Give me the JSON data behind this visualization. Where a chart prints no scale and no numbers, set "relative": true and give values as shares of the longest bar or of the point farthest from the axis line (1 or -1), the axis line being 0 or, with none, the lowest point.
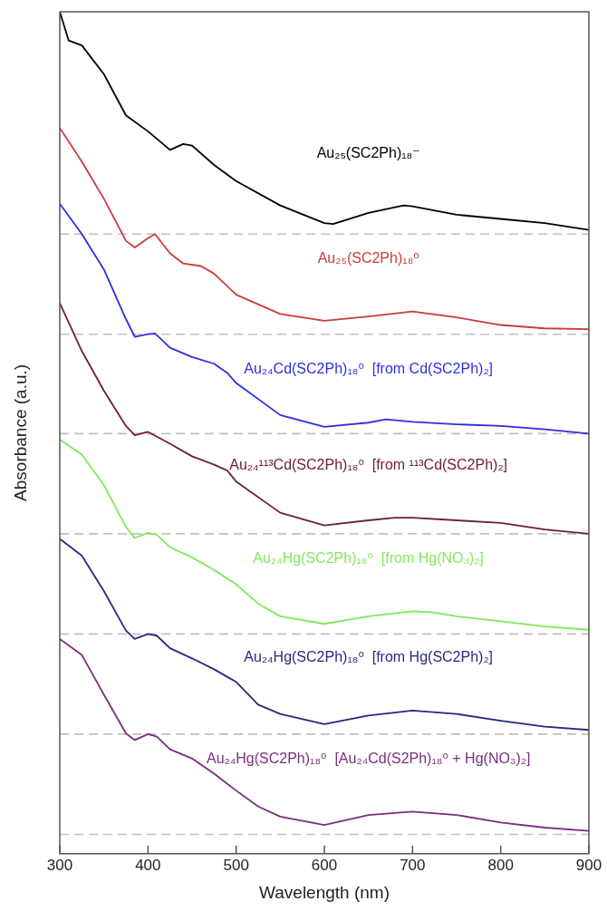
{
  "chart_data": {
    "type": "line",
    "relative": true,
    "xlabel": "Wavelength (nm)",
    "ylabel": "Absorbance (a.u.)",
    "xlim": [
      300,
      900
    ],
    "xticks": [
      300,
      400,
      500,
      600,
      700,
      800,
      900
    ],
    "grid": false,
    "legend": false,
    "marker": "none",
    "line_style": "solid",
    "series": [
      {
        "name": "Au₂₅(SC2Ph)₁₈⁻",
        "color": "#000000",
        "x": [
          300,
          310,
          325,
          350,
          375,
          400,
          425,
          440,
          450,
          475,
          500,
          550,
          600,
          610,
          650,
          690,
          700,
          750,
          800,
          850,
          900
        ],
        "values": [
          1.0,
          0.966,
          0.96,
          0.926,
          0.877,
          0.858,
          0.836,
          0.843,
          0.841,
          0.818,
          0.799,
          0.77,
          0.749,
          0.748,
          0.761,
          0.77,
          0.769,
          0.759,
          0.754,
          0.749,
          0.741
        ]
      },
      {
        "name": "Au₂₅(SC2Ph)₁₈⁰",
        "color": "#cc3a3a",
        "x": [
          300,
          325,
          350,
          375,
          385,
          400,
          408,
          425,
          440,
          460,
          475,
          500,
          550,
          600,
          650,
          700,
          750,
          800,
          850,
          900
        ],
        "values": [
          0.862,
          0.822,
          0.778,
          0.728,
          0.72,
          0.731,
          0.736,
          0.713,
          0.701,
          0.698,
          0.689,
          0.664,
          0.641,
          0.633,
          0.638,
          0.644,
          0.637,
          0.628,
          0.624,
          0.623
        ]
      },
      {
        "name": "Au₂₄Cd(SC2Ph)₁₈⁰  [from Cd(SC2Ph)₂]",
        "color": "#2f2fe0",
        "x": [
          300,
          325,
          350,
          375,
          385,
          400,
          408,
          425,
          450,
          475,
          490,
          500,
          550,
          600,
          650,
          670,
          700,
          750,
          800,
          850,
          900
        ],
        "values": [
          0.772,
          0.736,
          0.694,
          0.635,
          0.614,
          0.617,
          0.618,
          0.601,
          0.59,
          0.582,
          0.571,
          0.559,
          0.521,
          0.507,
          0.512,
          0.516,
          0.513,
          0.51,
          0.508,
          0.504,
          0.499
        ]
      },
      {
        "name": "Au₂₄¹¹³Cd(SC2Ph)₁₈⁰  [from ¹¹³Cd(SC2Ph)₂]",
        "color": "#6e2030",
        "x": [
          300,
          325,
          350,
          375,
          385,
          400,
          425,
          450,
          475,
          490,
          500,
          550,
          600,
          650,
          680,
          700,
          750,
          800,
          850,
          900
        ],
        "values": [
          0.654,
          0.597,
          0.55,
          0.508,
          0.497,
          0.501,
          0.487,
          0.472,
          0.462,
          0.455,
          0.442,
          0.405,
          0.39,
          0.396,
          0.399,
          0.399,
          0.396,
          0.393,
          0.385,
          0.38
        ]
      },
      {
        "name": "Au₂₄Hg(SC2Ph)₁₈⁰  [from Hg(NO₃)₂]",
        "color": "#80e85a",
        "x": [
          300,
          325,
          350,
          375,
          385,
          400,
          410,
          425,
          450,
          475,
          500,
          525,
          550,
          600,
          650,
          700,
          720,
          750,
          800,
          850,
          900
        ],
        "values": [
          0.492,
          0.474,
          0.438,
          0.388,
          0.375,
          0.381,
          0.379,
          0.364,
          0.352,
          0.337,
          0.32,
          0.297,
          0.282,
          0.273,
          0.282,
          0.288,
          0.287,
          0.282,
          0.276,
          0.27,
          0.266
        ]
      },
      {
        "name": "Au₂₄Hg(SC2Ph)₁₈⁰  [from Hg(SC2Ph)₂]",
        "color": "#26287f",
        "x": [
          300,
          325,
          350,
          375,
          385,
          400,
          410,
          425,
          450,
          475,
          500,
          525,
          550,
          600,
          650,
          700,
          750,
          800,
          850,
          900
        ],
        "values": [
          0.374,
          0.354,
          0.312,
          0.265,
          0.255,
          0.261,
          0.259,
          0.244,
          0.232,
          0.219,
          0.204,
          0.177,
          0.166,
          0.154,
          0.164,
          0.17,
          0.166,
          0.158,
          0.151,
          0.147
        ]
      },
      {
        "name": "Au₂₄Hg(SC2Ph)₁₈⁰  [Au₂₄Cd(S2Ph)₁₈⁰ + Hg(NO₃)₂]",
        "color": "#7a2e7e",
        "x": [
          300,
          325,
          350,
          375,
          385,
          400,
          410,
          425,
          450,
          475,
          500,
          525,
          550,
          600,
          650,
          700,
          750,
          800,
          850,
          900
        ],
        "values": [
          0.255,
          0.236,
          0.189,
          0.143,
          0.135,
          0.142,
          0.139,
          0.124,
          0.113,
          0.095,
          0.075,
          0.056,
          0.044,
          0.034,
          0.046,
          0.05,
          0.046,
          0.037,
          0.031,
          0.027
        ]
      }
    ],
    "ref_lines": [
      {
        "axis": "y",
        "value": 0.736,
        "color": "#c0c0c0",
        "line_style": "dashed"
      },
      {
        "axis": "y",
        "value": 0.617,
        "color": "#c0c0c0",
        "line_style": "dashed"
      },
      {
        "axis": "y",
        "value": 0.499,
        "color": "#c0c0c0",
        "line_style": "dashed"
      },
      {
        "axis": "y",
        "value": 0.38,
        "color": "#c0c0c0",
        "line_style": "dashed"
      },
      {
        "axis": "y",
        "value": 0.261,
        "color": "#c0c0c0",
        "line_style": "dashed"
      },
      {
        "axis": "y",
        "value": 0.142,
        "color": "#c0c0c0",
        "line_style": "dashed"
      },
      {
        "axis": "y",
        "value": 0.023,
        "color": "#c0c0c0",
        "line_style": "dashed"
      }
    ]
  }
}
